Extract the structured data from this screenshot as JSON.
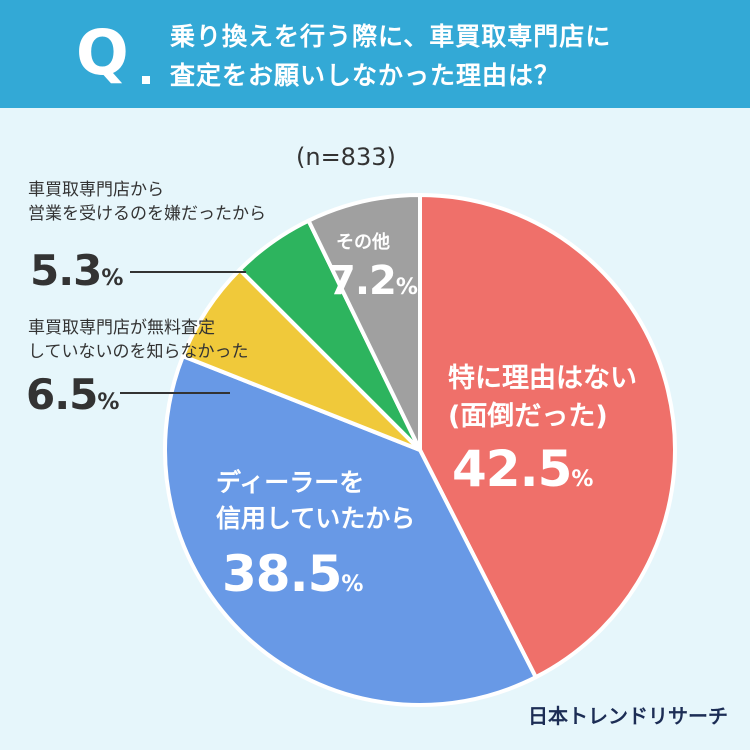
{
  "header": {
    "q_mark": "Q",
    "line1": "乗り換えを行う際に、車買取専門店に",
    "line2": "査定をお願いしなかった理由は？"
  },
  "n_label": "(n=833)",
  "brand": "日本トレンドリサーチ",
  "unit": "%",
  "colors": {
    "header": "#33a9d6",
    "background": "#e6f6fb",
    "red": "#ef706a",
    "blue": "#6899e6",
    "yellow": "#f0c93a",
    "green": "#2db45e",
    "gray": "#a0a0a0"
  },
  "chart_data": {
    "type": "pie",
    "slices": [
      {
        "label_lines": [
          "特に理由はない",
          "(面倒だった)"
        ],
        "value": 42.5,
        "value_text": "42.5",
        "color": "#ef706a"
      },
      {
        "label_lines": [
          "ディーラーを",
          "信用していたから"
        ],
        "value": 38.5,
        "value_text": "38.5",
        "color": "#6899e6"
      },
      {
        "label_lines": [
          "車買取専門店が無料査定",
          "していないのを知らなかった"
        ],
        "value": 6.5,
        "value_text": "6.5",
        "color": "#f0c93a"
      },
      {
        "label_lines": [
          "車買取専門店から",
          "営業を受けるのを嫌だったから"
        ],
        "value": 5.3,
        "value_text": "5.3",
        "color": "#2db45e"
      },
      {
        "label_lines": [
          "その他"
        ],
        "value": 7.2,
        "value_text": "7.2",
        "color": "#a0a0a0"
      }
    ]
  }
}
